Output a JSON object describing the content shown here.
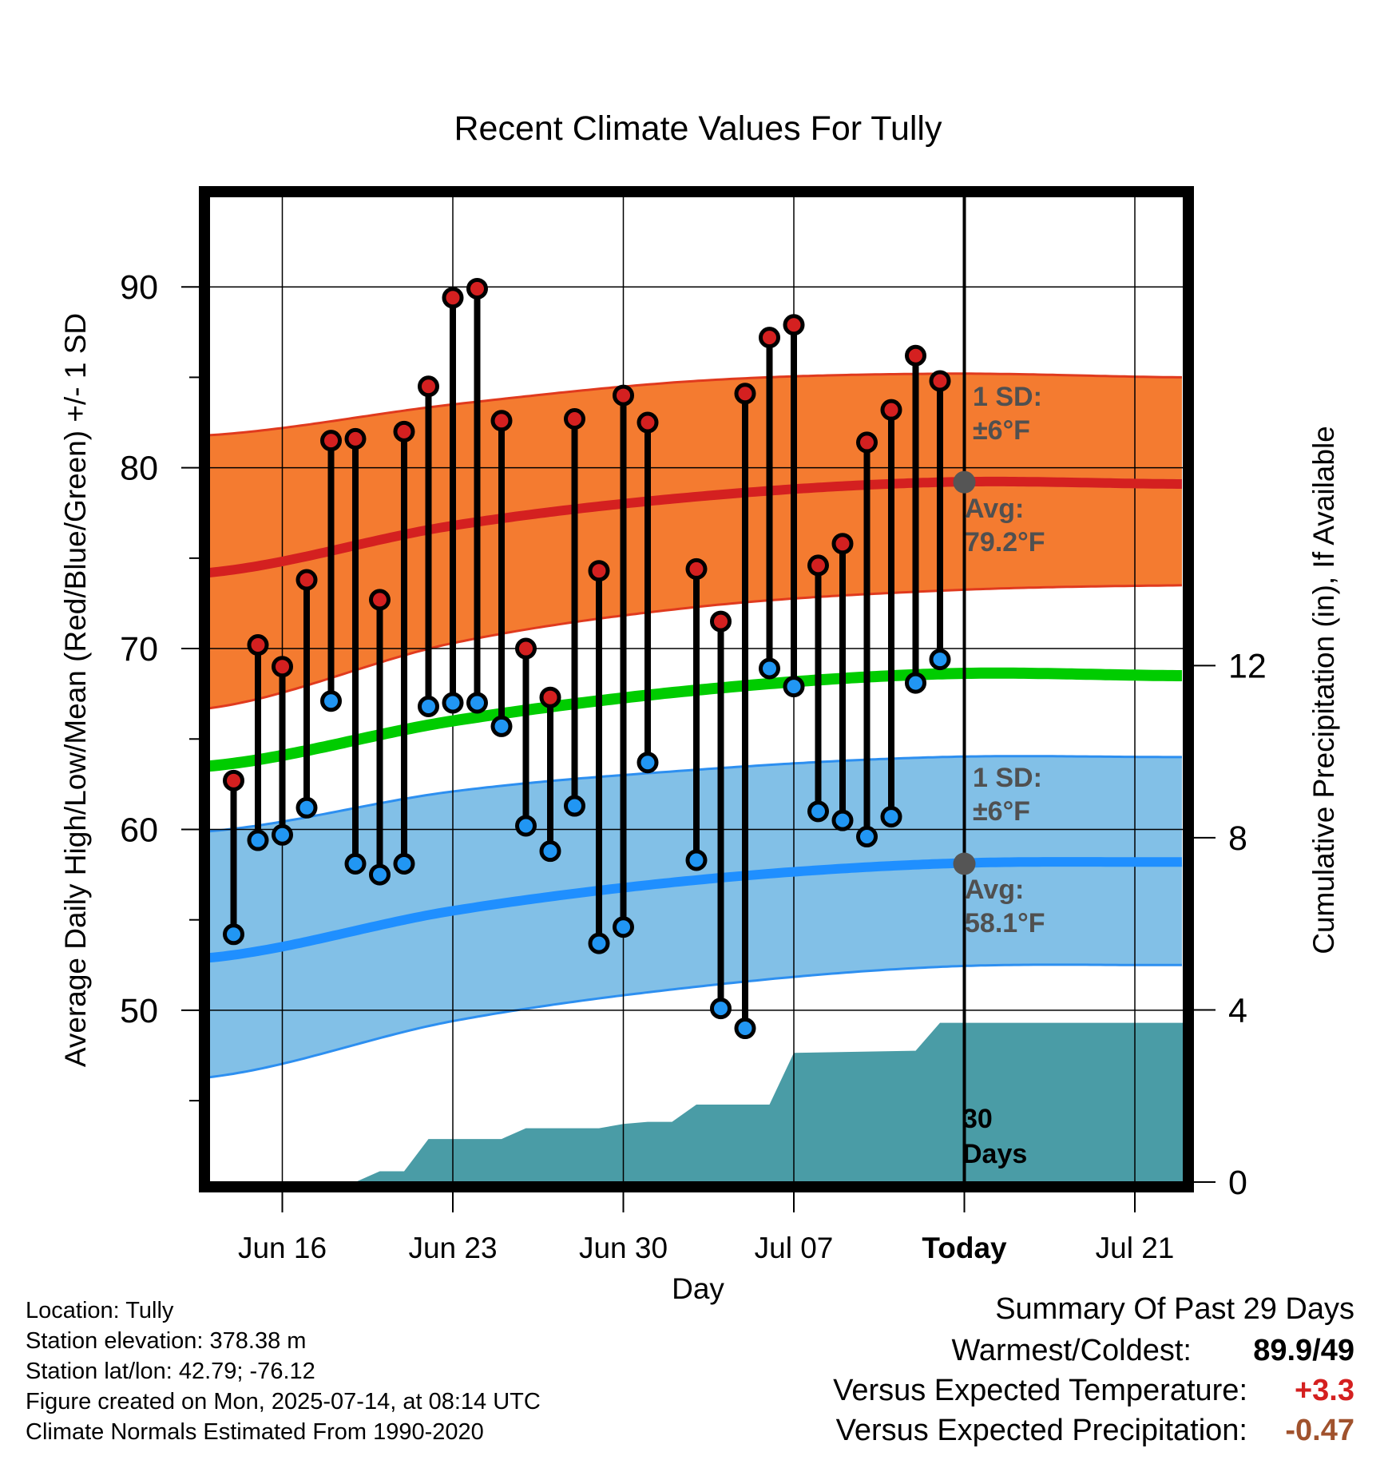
{
  "chart_data": {
    "type": "line",
    "title": "Recent Climate Values For Tully",
    "xlabel": "Day",
    "ylabel": "Average Daily High/Low/Mean (Red/Blue/Green) +/- 1 SD",
    "y2label": "Cumulative Precipitation (in), If Available",
    "ylim": [
      40.5,
      95
    ],
    "y2lim": [
      0,
      22.9
    ],
    "yticks": [
      50,
      60,
      70,
      80,
      90
    ],
    "y2ticks": [
      0,
      4,
      8,
      12
    ],
    "xrange": [
      "2025-06-13",
      "2025-07-23"
    ],
    "xticks": [
      {
        "date": "2025-06-16",
        "label": "Jun 16"
      },
      {
        "date": "2025-06-23",
        "label": "Jun 23"
      },
      {
        "date": "2025-06-30",
        "label": "Jun 30"
      },
      {
        "date": "2025-07-07",
        "label": "Jul 07"
      },
      {
        "date": "2025-07-14",
        "label": "Today"
      },
      {
        "date": "2025-07-21",
        "label": "Jul 21"
      }
    ],
    "grid": true,
    "today": "2025-07-14",
    "today_label": "30\nDays",
    "normals": {
      "dates": [
        "2025-06-13",
        "2025-06-23",
        "2025-07-03",
        "2025-07-13",
        "2025-07-23"
      ],
      "high_avg": [
        74.2,
        76.8,
        78.4,
        79.2,
        79.1
      ],
      "high_sd_upper": [
        81.8,
        83.5,
        84.8,
        85.2,
        85.0
      ],
      "high_sd_lower": [
        66.7,
        70.3,
        72.3,
        73.2,
        73.5
      ],
      "mean": [
        63.5,
        66.0,
        67.7,
        68.6,
        68.5
      ],
      "low_avg": [
        52.9,
        55.5,
        57.2,
        58.1,
        58.2
      ],
      "low_sd_upper": [
        59.9,
        62.1,
        63.3,
        64.0,
        64.0
      ],
      "low_sd_lower": [
        46.3,
        49.4,
        51.3,
        52.4,
        52.5
      ]
    },
    "annotations": {
      "high_sd": "1 SD:\n±6°F",
      "high_avg": "Avg:\n79.2°F",
      "low_sd": "1 SD:\n±6°F",
      "low_avg": "Avg:\n58.1°F"
    },
    "daily": {
      "dates": [
        "2025-06-14",
        "2025-06-15",
        "2025-06-16",
        "2025-06-17",
        "2025-06-18",
        "2025-06-19",
        "2025-06-20",
        "2025-06-21",
        "2025-06-22",
        "2025-06-23",
        "2025-06-24",
        "2025-06-25",
        "2025-06-26",
        "2025-06-27",
        "2025-06-28",
        "2025-06-29",
        "2025-06-30",
        "2025-07-01",
        "2025-07-03",
        "2025-07-04",
        "2025-07-05",
        "2025-07-06",
        "2025-07-07",
        "2025-07-08",
        "2025-07-09",
        "2025-07-10",
        "2025-07-11",
        "2025-07-12",
        "2025-07-13"
      ],
      "highs": [
        62.7,
        70.2,
        69.0,
        73.8,
        81.5,
        81.6,
        72.7,
        82.0,
        84.5,
        89.4,
        89.9,
        82.6,
        70.0,
        67.3,
        82.7,
        74.3,
        84.0,
        82.5,
        74.4,
        71.5,
        84.1,
        87.2,
        87.9,
        74.6,
        75.8,
        81.4,
        83.2,
        86.2,
        84.8
      ],
      "lows": [
        54.2,
        59.4,
        59.7,
        61.2,
        67.1,
        58.1,
        57.5,
        58.1,
        66.8,
        67.0,
        67.0,
        65.7,
        60.2,
        58.8,
        61.3,
        53.7,
        54.6,
        63.7,
        58.3,
        50.1,
        49.0,
        68.9,
        67.9,
        61.0,
        60.5,
        59.6,
        60.7,
        68.1,
        69.4
      ]
    },
    "precip_cumulative": {
      "dates": [
        "2025-06-13",
        "2025-06-19",
        "2025-06-20",
        "2025-06-21",
        "2025-06-22",
        "2025-06-25",
        "2025-06-26",
        "2025-06-29",
        "2025-06-30",
        "2025-07-01",
        "2025-07-02",
        "2025-07-03",
        "2025-07-06",
        "2025-07-07",
        "2025-07-12",
        "2025-07-13",
        "2025-07-23"
      ],
      "values": [
        0,
        0,
        0.25,
        0.25,
        1.0,
        1.0,
        1.25,
        1.25,
        1.35,
        1.4,
        1.4,
        1.8,
        1.8,
        3.0,
        3.05,
        3.7,
        3.7
      ]
    },
    "colors": {
      "high_band": "#f47b30",
      "high_band_edge": "#e03a1e",
      "high_avg": "#d42020",
      "mean": "#00cc00",
      "low_band": "#82c0e7",
      "low_band_edge": "#2d8ff0",
      "low_avg": "#1f8fff",
      "high_dot": "#d42020",
      "low_dot": "#2196f3",
      "precip": "#4a9ca6",
      "annotation": "#505050",
      "warm": "#d42020",
      "dry": "#a0522d"
    }
  },
  "footer": {
    "location": "Location: Tully",
    "elevation": "Station elevation: 378.38 m",
    "latlon": "Station lat/lon: 42.79; -76.12",
    "created": "Figure created on Mon, 2025-07-14, at 08:14 UTC",
    "normals": "Climate Normals Estimated From 1990-2020"
  },
  "summary": {
    "title": "Summary Of Past 29 Days",
    "warmest_label": "Warmest/Coldest:",
    "warmest_value": "89.9/49",
    "temp_label": "Versus Expected Temperature:",
    "temp_value": "+3.3",
    "precip_label": "Versus Expected Precipitation:",
    "precip_value": "-0.47"
  }
}
